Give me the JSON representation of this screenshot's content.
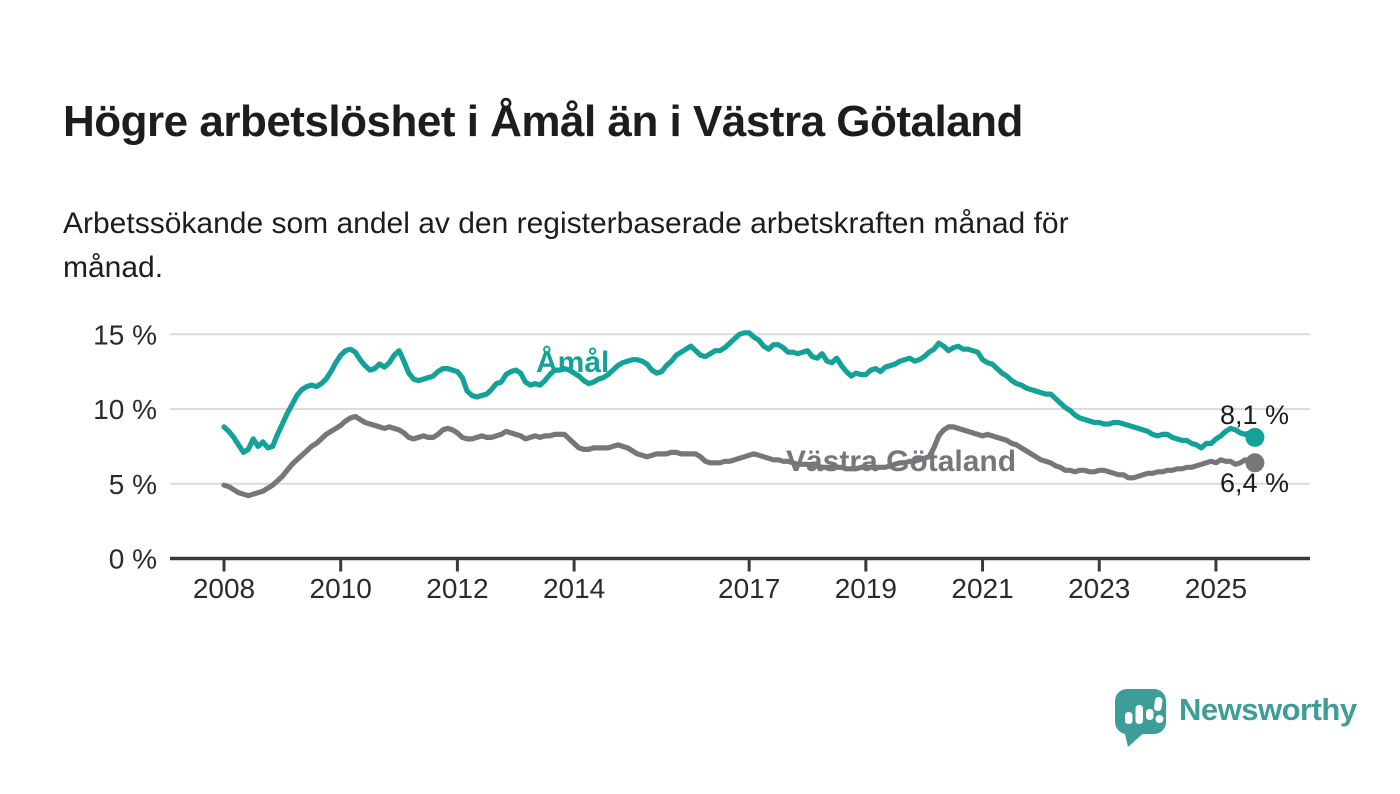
{
  "header": {
    "title": "Högre arbetslöshet i Åmål än i Västra Götaland",
    "subtitle": "Arbetssökande som andel av den registerbaserade arbetskraften månad för månad."
  },
  "chart_data": {
    "type": "line",
    "title": "Högre arbetslöshet i Åmål än i Västra Götaland",
    "subtitle": "Arbetssökande som andel av den registerbaserade arbetskraften månad för månad.",
    "unit": "%",
    "x_start_year": 2008,
    "x_frequency": "monthly",
    "x_end": "2025-09",
    "x_tick_years": [
      2008,
      2010,
      2012,
      2014,
      2017,
      2019,
      2021,
      2023,
      2025
    ],
    "x_tick_labels": [
      "2008",
      "2010",
      "2012",
      "2014",
      "2017",
      "2019",
      "2021",
      "2023",
      "2025"
    ],
    "y_ticks": [
      {
        "value": 0,
        "label": "0 %"
      },
      {
        "value": 5,
        "label": "5 %"
      },
      {
        "value": 10,
        "label": "10 %"
      },
      {
        "value": 15,
        "label": "15 %"
      }
    ],
    "ylim": [
      0,
      16
    ],
    "grid": "horizontal",
    "legend_position": "inline-labels",
    "colors": {
      "axis": "#3a3a3a",
      "gridline": "#dcdcdc",
      "tick_text": "#2b2b2b",
      "value_text": "#1d1d1d"
    },
    "series": [
      {
        "name": "Åmål",
        "slug": "amal",
        "color": "#14a197",
        "end_label": "8,1 %",
        "values": [
          8.8,
          8.5,
          8.1,
          7.6,
          7.1,
          7.3,
          8.0,
          7.5,
          7.8,
          7.4,
          7.5,
          8.3,
          9.0,
          9.7,
          10.3,
          10.9,
          11.3,
          11.5,
          11.6,
          11.5,
          11.7,
          12.0,
          12.5,
          13.1,
          13.6,
          13.9,
          14.0,
          13.8,
          13.3,
          12.9,
          12.6,
          12.7,
          13.0,
          12.8,
          13.1,
          13.6,
          13.9,
          13.2,
          12.4,
          12.0,
          11.9,
          12.0,
          12.1,
          12.2,
          12.5,
          12.7,
          12.7,
          12.6,
          12.5,
          12.1,
          11.2,
          10.9,
          10.8,
          10.9,
          11.0,
          11.3,
          11.7,
          11.8,
          12.3,
          12.5,
          12.6,
          12.4,
          11.8,
          11.6,
          11.7,
          11.6,
          11.9,
          12.3,
          12.6,
          12.6,
          12.7,
          12.6,
          12.4,
          12.2,
          11.9,
          11.7,
          11.8,
          12.0,
          12.1,
          12.3,
          12.6,
          12.9,
          13.1,
          13.2,
          13.3,
          13.3,
          13.2,
          13.0,
          12.6,
          12.4,
          12.5,
          12.9,
          13.2,
          13.6,
          13.8,
          14.0,
          14.2,
          13.9,
          13.6,
          13.5,
          13.7,
          13.9,
          13.9,
          14.1,
          14.4,
          14.7,
          15.0,
          15.1,
          15.1,
          14.8,
          14.6,
          14.2,
          14.0,
          14.3,
          14.3,
          14.1,
          13.8,
          13.8,
          13.7,
          13.8,
          13.9,
          13.5,
          13.4,
          13.7,
          13.2,
          13.1,
          13.4,
          12.9,
          12.5,
          12.2,
          12.4,
          12.3,
          12.3,
          12.6,
          12.7,
          12.5,
          12.8,
          12.9,
          13.0,
          13.2,
          13.3,
          13.4,
          13.2,
          13.3,
          13.5,
          13.8,
          14.0,
          14.4,
          14.2,
          13.9,
          14.1,
          14.2,
          14.0,
          14.0,
          13.9,
          13.8,
          13.3,
          13.1,
          13.0,
          12.7,
          12.4,
          12.2,
          11.9,
          11.7,
          11.6,
          11.4,
          11.3,
          11.2,
          11.1,
          11.0,
          11.0,
          10.7,
          10.4,
          10.1,
          9.9,
          9.6,
          9.4,
          9.3,
          9.2,
          9.1,
          9.1,
          9.0,
          9.0,
          9.1,
          9.1,
          9.0,
          8.9,
          8.8,
          8.7,
          8.6,
          8.5,
          8.3,
          8.2,
          8.3,
          8.3,
          8.1,
          8.0,
          7.9,
          7.9,
          7.7,
          7.6,
          7.4,
          7.7,
          7.7,
          8.0,
          8.2,
          8.5,
          8.7,
          8.6,
          8.4,
          8.3,
          8.4,
          8.1
        ]
      },
      {
        "name": "Västra Götaland",
        "slug": "vastra-gotaland",
        "color": "#76767b",
        "end_label": "6,4 %",
        "values": [
          4.9,
          4.8,
          4.6,
          4.4,
          4.3,
          4.2,
          4.3,
          4.4,
          4.5,
          4.7,
          4.9,
          5.2,
          5.5,
          5.9,
          6.3,
          6.6,
          6.9,
          7.2,
          7.5,
          7.7,
          8.0,
          8.3,
          8.5,
          8.7,
          8.9,
          9.2,
          9.4,
          9.5,
          9.3,
          9.1,
          9.0,
          8.9,
          8.8,
          8.7,
          8.8,
          8.7,
          8.6,
          8.4,
          8.1,
          8.0,
          8.1,
          8.2,
          8.1,
          8.1,
          8.3,
          8.6,
          8.7,
          8.6,
          8.4,
          8.1,
          8.0,
          8.0,
          8.1,
          8.2,
          8.1,
          8.1,
          8.2,
          8.3,
          8.5,
          8.4,
          8.3,
          8.2,
          8.0,
          8.1,
          8.2,
          8.1,
          8.2,
          8.2,
          8.3,
          8.3,
          8.3,
          8.0,
          7.7,
          7.4,
          7.3,
          7.3,
          7.4,
          7.4,
          7.4,
          7.4,
          7.5,
          7.6,
          7.5,
          7.4,
          7.2,
          7.0,
          6.9,
          6.8,
          6.9,
          7.0,
          7.0,
          7.0,
          7.1,
          7.1,
          7.0,
          7.0,
          7.0,
          7.0,
          6.8,
          6.5,
          6.4,
          6.4,
          6.4,
          6.5,
          6.5,
          6.6,
          6.7,
          6.8,
          6.9,
          7.0,
          6.9,
          6.8,
          6.7,
          6.6,
          6.6,
          6.5,
          6.5,
          6.4,
          6.3,
          6.3,
          6.3,
          6.2,
          6.2,
          6.1,
          6.1,
          6.1,
          6.1,
          6.1,
          6.0,
          6.0,
          6.0,
          6.1,
          6.1,
          6.1,
          6.1,
          6.1,
          6.1,
          6.2,
          6.3,
          6.4,
          6.4,
          6.5,
          6.5,
          6.6,
          6.7,
          6.8,
          7.4,
          8.2,
          8.6,
          8.8,
          8.8,
          8.7,
          8.6,
          8.5,
          8.4,
          8.3,
          8.2,
          8.3,
          8.2,
          8.1,
          8.0,
          7.9,
          7.7,
          7.6,
          7.4,
          7.2,
          7.0,
          6.8,
          6.6,
          6.5,
          6.4,
          6.2,
          6.1,
          5.9,
          5.9,
          5.8,
          5.9,
          5.9,
          5.8,
          5.8,
          5.9,
          5.9,
          5.8,
          5.7,
          5.6,
          5.6,
          5.4,
          5.4,
          5.5,
          5.6,
          5.7,
          5.7,
          5.8,
          5.8,
          5.9,
          5.9,
          6.0,
          6.0,
          6.1,
          6.1,
          6.2,
          6.3,
          6.4,
          6.5,
          6.4,
          6.6,
          6.5,
          6.5,
          6.3,
          6.4,
          6.6,
          6.5,
          6.4
        ]
      }
    ]
  },
  "footer": {
    "brand": "Newsworthy",
    "brand_color": "#3e9e97"
  }
}
